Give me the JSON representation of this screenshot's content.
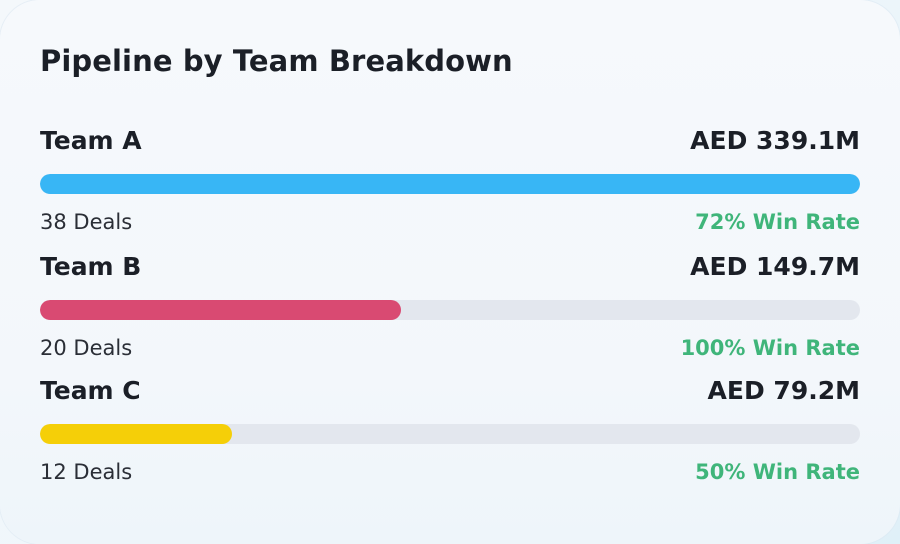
{
  "card": {
    "title": "Pipeline by Team Breakdown"
  },
  "teams": [
    {
      "name": "Team A",
      "amount": "AED 339.1M",
      "deals": "38 Deals",
      "win_rate": "72% Win Rate",
      "bar_fraction": 1.0,
      "bar_color": "#38b6f5"
    },
    {
      "name": "Team B",
      "amount": "AED 149.7M",
      "deals": "20 Deals",
      "win_rate": "100% Win Rate",
      "bar_fraction": 0.44,
      "bar_color": "#d94a72"
    },
    {
      "name": "Team C",
      "amount": "AED 79.2M",
      "deals": "12 Deals",
      "win_rate": "50% Win Rate",
      "bar_fraction": 0.234,
      "bar_color": "#f5cf08"
    }
  ],
  "colors": {
    "win_rate": "#3fb57a",
    "track": "#e3e7ee",
    "text": "#1b1f27"
  }
}
